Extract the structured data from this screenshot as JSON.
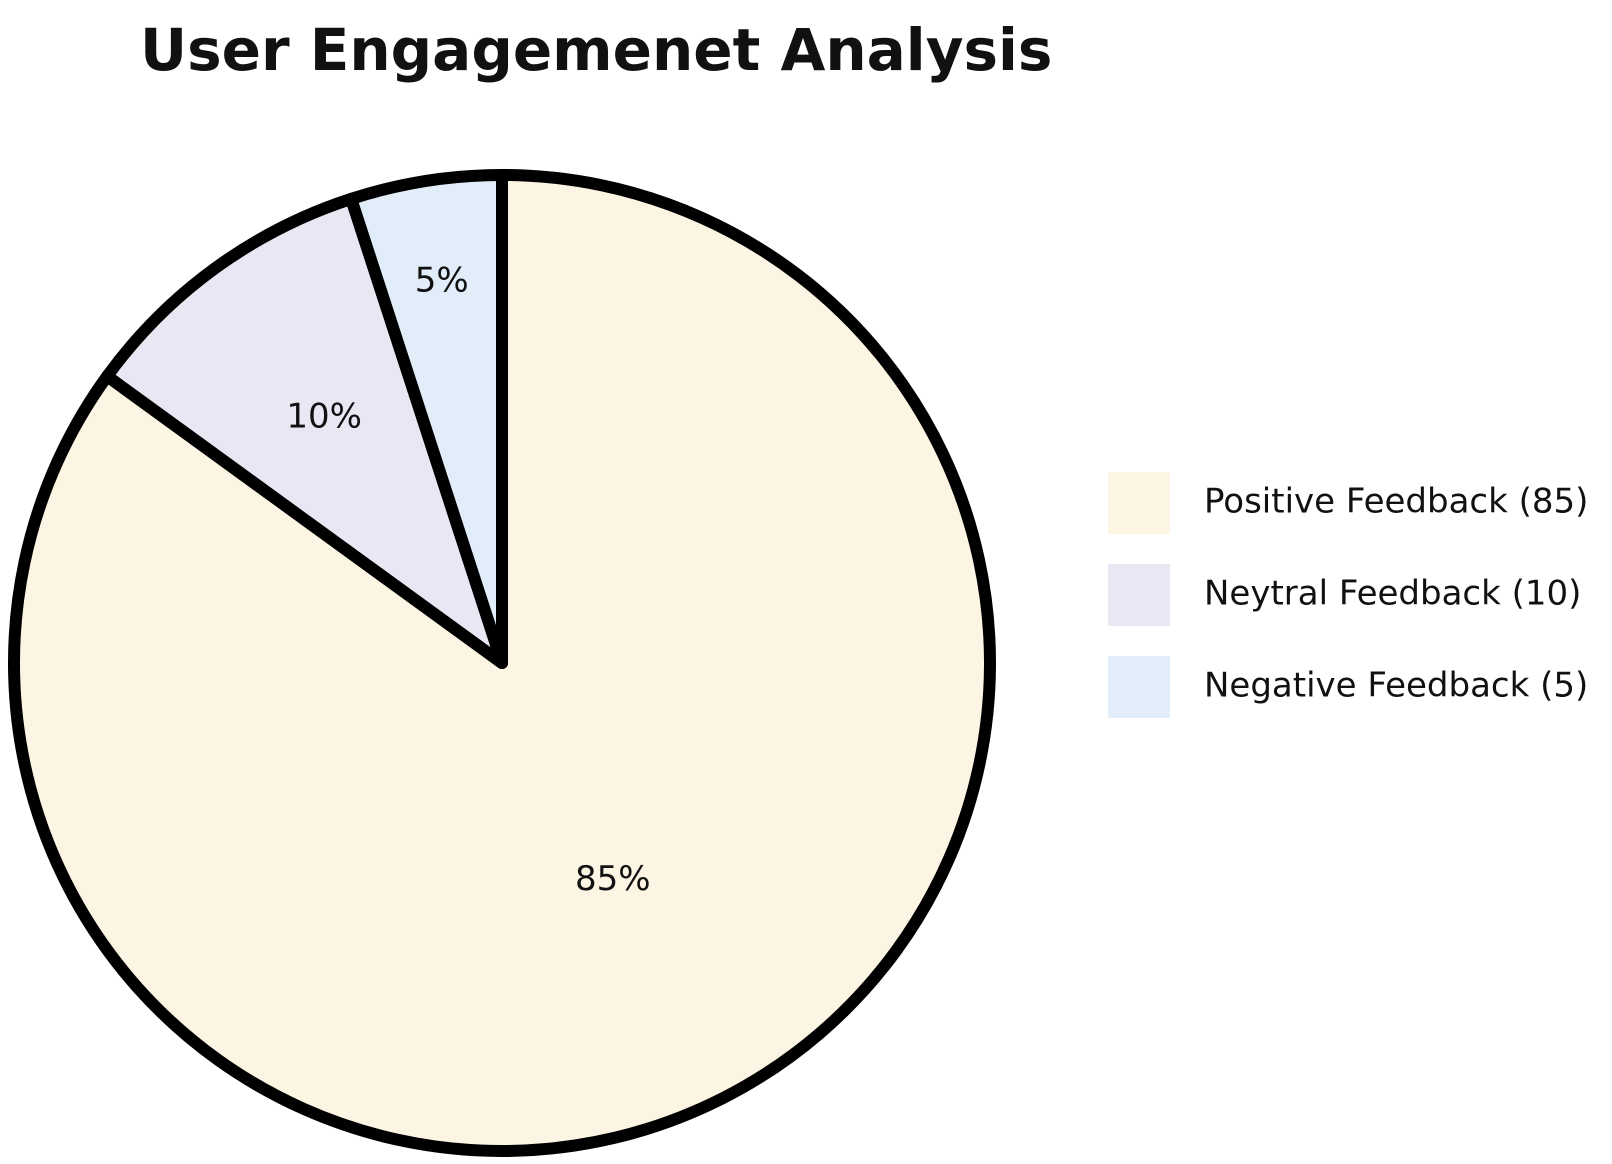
{
  "chart_data": {
    "type": "pie",
    "title": "User Engagemenet Analysis",
    "slices": [
      {
        "label": "Positive Feedback (85)",
        "value": 85,
        "display": "85%",
        "color": "#fdf5e4"
      },
      {
        "label": "Neytral Feedback (10)",
        "value": 10,
        "display": "10%",
        "color": "#e8e8f4"
      },
      {
        "label": "Negative Feedback (5)",
        "value": 5,
        "display": "5%",
        "color": "#e1edf8"
      }
    ],
    "start_angle": "top, clockwise",
    "slice_border_color": "#000000",
    "legend_position": "right"
  }
}
